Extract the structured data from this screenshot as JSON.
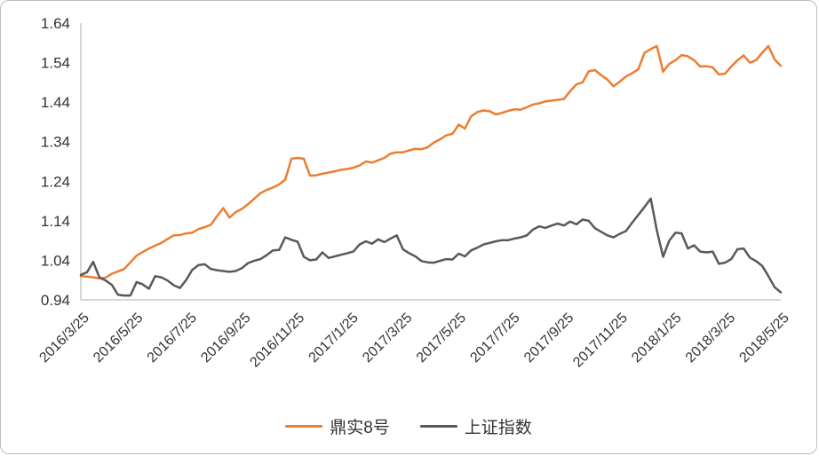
{
  "chart_data": {
    "type": "line",
    "title": "",
    "xlabel": "",
    "ylabel": "",
    "ylim": [
      0.94,
      1.64
    ],
    "y_ticks": [
      0.94,
      1.04,
      1.14,
      1.24,
      1.34,
      1.44,
      1.54,
      1.64
    ],
    "y_tick_decimals": 2,
    "grid": false,
    "legend_position": "bottom",
    "axis_color": "#bfbfbf",
    "tick_text_color": "#333333",
    "x_tick_labels": [
      "2016/3/25",
      "2016/5/25",
      "2016/7/25",
      "2016/9/25",
      "2016/11/25",
      "2017/1/25",
      "2017/3/25",
      "2017/5/25",
      "2017/7/25",
      "2017/9/25",
      "2017/11/25",
      "2018/1/25",
      "2018/3/25",
      "2018/5/25"
    ],
    "series": [
      {
        "name": "鼎实8号",
        "color": "#ED7D31",
        "values": [
          1.0,
          0.999,
          0.997,
          0.994,
          0.996,
          1.006,
          1.012,
          1.018,
          1.035,
          1.052,
          1.061,
          1.07,
          1.077,
          1.084,
          1.094,
          1.103,
          1.104,
          1.108,
          1.11,
          1.119,
          1.124,
          1.13,
          1.152,
          1.172,
          1.148,
          1.162,
          1.17,
          1.182,
          1.196,
          1.21,
          1.218,
          1.224,
          1.232,
          1.244,
          1.297,
          1.299,
          1.297,
          1.254,
          1.255,
          1.259,
          1.262,
          1.265,
          1.269,
          1.271,
          1.274,
          1.28,
          1.29,
          1.287,
          1.293,
          1.299,
          1.31,
          1.313,
          1.313,
          1.318,
          1.322,
          1.321,
          1.326,
          1.338,
          1.346,
          1.356,
          1.36,
          1.383,
          1.373,
          1.404,
          1.415,
          1.419,
          1.417,
          1.409,
          1.413,
          1.418,
          1.422,
          1.421,
          1.427,
          1.434,
          1.437,
          1.442,
          1.444,
          1.446,
          1.448,
          1.468,
          1.485,
          1.49,
          1.518,
          1.521,
          1.508,
          1.497,
          1.48,
          1.492,
          1.505,
          1.513,
          1.523,
          1.565,
          1.574,
          1.582,
          1.517,
          1.537,
          1.546,
          1.559,
          1.556,
          1.546,
          1.53,
          1.531,
          1.528,
          1.51,
          1.512,
          1.53,
          1.546,
          1.558,
          1.54,
          1.546,
          1.565,
          1.582,
          1.548,
          1.532
        ]
      },
      {
        "name": "上证指数",
        "color": "#595959",
        "values": [
          1.003,
          1.01,
          1.036,
          0.997,
          0.989,
          0.978,
          0.953,
          0.951,
          0.951,
          0.985,
          0.979,
          0.968,
          1.0,
          0.997,
          0.989,
          0.977,
          0.97,
          0.99,
          1.016,
          1.028,
          1.03,
          1.018,
          1.015,
          1.013,
          1.011,
          1.013,
          1.02,
          1.033,
          1.039,
          1.043,
          1.053,
          1.065,
          1.066,
          1.098,
          1.092,
          1.087,
          1.049,
          1.04,
          1.042,
          1.06,
          1.046,
          1.05,
          1.054,
          1.058,
          1.062,
          1.08,
          1.088,
          1.082,
          1.093,
          1.086,
          1.095,
          1.103,
          1.068,
          1.058,
          1.05,
          1.038,
          1.035,
          1.034,
          1.039,
          1.043,
          1.042,
          1.057,
          1.05,
          1.065,
          1.072,
          1.08,
          1.084,
          1.088,
          1.091,
          1.091,
          1.095,
          1.098,
          1.103,
          1.118,
          1.126,
          1.122,
          1.128,
          1.133,
          1.128,
          1.138,
          1.131,
          1.143,
          1.14,
          1.121,
          1.112,
          1.103,
          1.098,
          1.107,
          1.114,
          1.135,
          1.155,
          1.175,
          1.196,
          1.115,
          1.049,
          1.09,
          1.11,
          1.108,
          1.07,
          1.078,
          1.062,
          1.06,
          1.062,
          1.031,
          1.034,
          1.043,
          1.068,
          1.07,
          1.047,
          1.038,
          1.026,
          1.0,
          0.972,
          0.959
        ]
      }
    ]
  }
}
